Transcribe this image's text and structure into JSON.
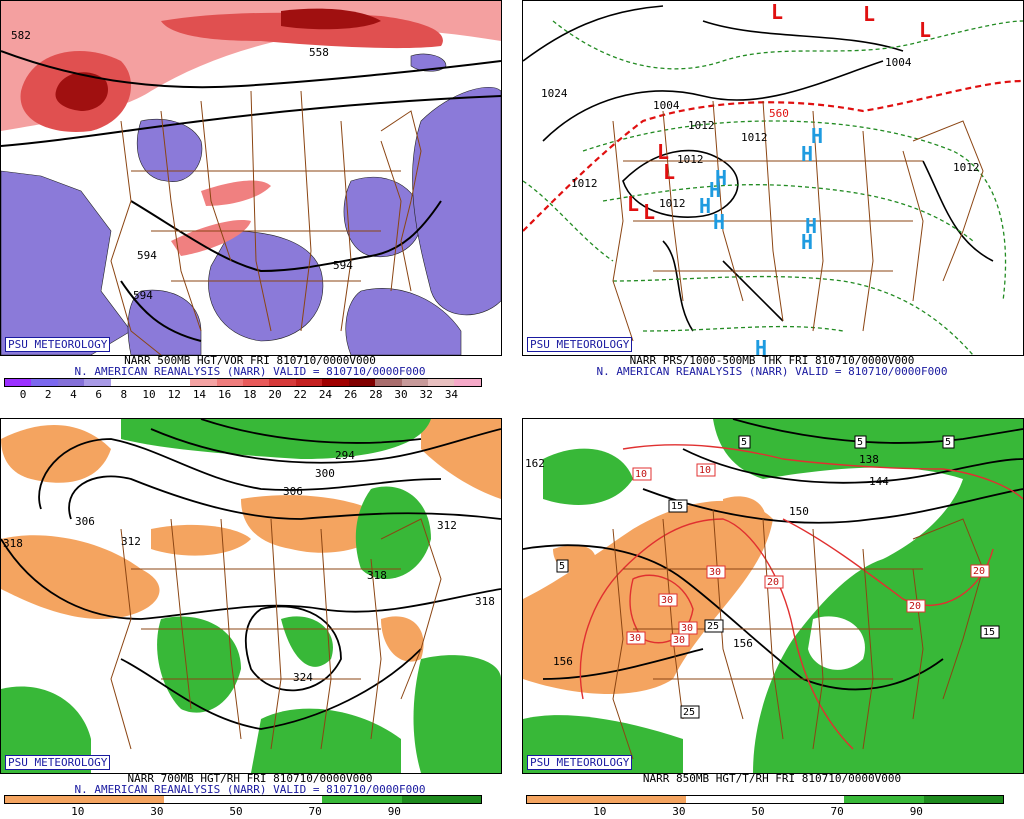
{
  "badge": "PSU METEOROLOGY",
  "panels": {
    "tl": {
      "title": "NARR 500MB HGT/VOR FRI 810710/0000V000",
      "subtitle": "N. AMERICAN REANALYSIS (NARR) VALID = 810710/0000F000",
      "contours": [
        "582",
        "558",
        "594",
        "594",
        "594"
      ],
      "colorbar": {
        "colors": [
          "#9b30ff",
          "#7b68ee",
          "#8470d8",
          "#a89ae6",
          "#ffffff",
          "#ffffff",
          "#ffffff",
          "#f4a3a3",
          "#ef7d7d",
          "#e85a5a",
          "#d63a3a",
          "#c42020",
          "#a00000",
          "#800000",
          "#a96d6d",
          "#c79a9a",
          "#e8c0c0",
          "#f5a9c8"
        ],
        "ticks": [
          "0",
          "2",
          "4",
          "6",
          "8",
          "10",
          "12",
          "14",
          "16",
          "18",
          "20",
          "22",
          "24",
          "26",
          "28",
          "30",
          "32",
          "34"
        ]
      }
    },
    "tr": {
      "title": "NARR PRS/1000-500MB THK FRI 810710/0000V000",
      "subtitle": "N. AMERICAN REANALYSIS (NARR) VALID = 810710/0000F000",
      "labels": [
        "1004",
        "1012",
        "1012",
        "1012",
        "1012",
        "1012",
        "1024",
        "560",
        "1012",
        "1004"
      ],
      "highs": [
        "H",
        "H",
        "H",
        "H",
        "H",
        "H",
        "H",
        "H",
        "H"
      ],
      "lows": [
        "L",
        "L",
        "L",
        "L",
        "L",
        "L",
        "L"
      ]
    },
    "bl": {
      "title": "NARR 700MB HGT/RH FRI 810710/0000V000",
      "subtitle": "N. AMERICAN REANALYSIS (NARR) VALID = 810710/0000F000",
      "contours": [
        "294",
        "300",
        "306",
        "306",
        "312",
        "312",
        "318",
        "318",
        "318",
        "324"
      ],
      "colorbar": {
        "colors": [
          "#f4a460",
          "#f4a460",
          "#ffffff",
          "#ffffff",
          "#38b838",
          "#1e8a1e"
        ],
        "ticks": [
          "10",
          "30",
          "50",
          "70",
          "90"
        ]
      }
    },
    "br": {
      "title": "NARR 850MB HGT/T/RH FRI 810710/0000V000",
      "contours": [
        "138",
        "144",
        "150",
        "156",
        "156",
        "162"
      ],
      "temps": [
        "5",
        "5",
        "5",
        "5",
        "10",
        "10",
        "15",
        "15",
        "20",
        "20",
        "20",
        "25",
        "25",
        "30",
        "30",
        "30",
        "30",
        "30"
      ],
      "colorbar": {
        "colors": [
          "#f4a460",
          "#f4a460",
          "#ffffff",
          "#ffffff",
          "#38b838",
          "#1e8a1e"
        ],
        "ticks": [
          "10",
          "30",
          "50",
          "70",
          "90"
        ]
      }
    }
  }
}
